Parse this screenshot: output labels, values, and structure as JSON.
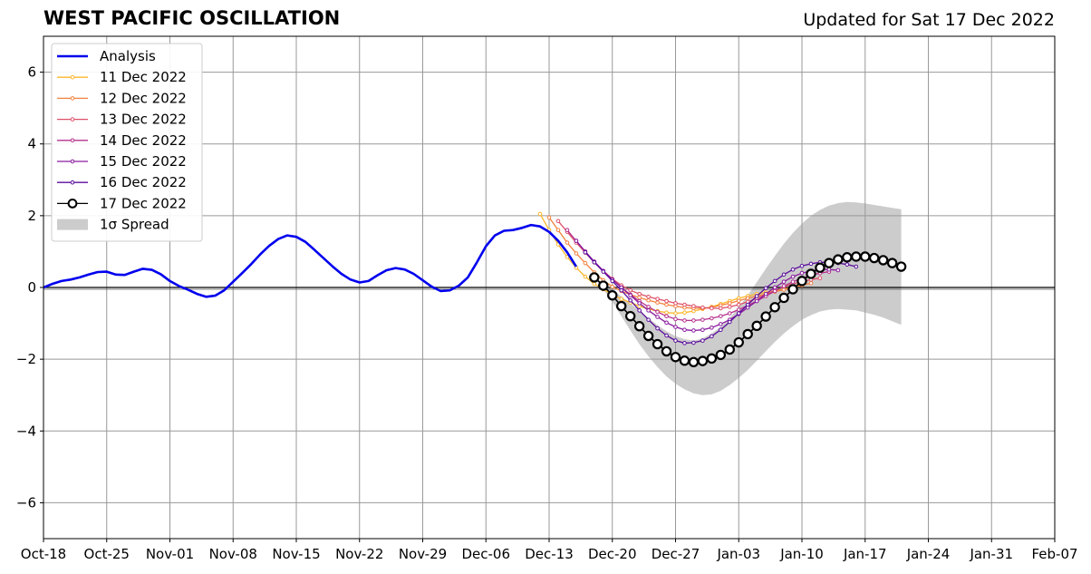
{
  "header": {
    "title": "WEST PACIFIC OSCILLATION",
    "updated": "Updated for Sat 17 Dec 2022"
  },
  "chart_data": {
    "type": "line",
    "title": "WEST PACIFIC OSCILLATION",
    "subtitle": "Updated for Sat 17 Dec 2022",
    "xlabel": "",
    "ylabel": "",
    "xlim": [
      "2022-10-18",
      "2023-02-07"
    ],
    "ylim": [
      -7,
      7
    ],
    "grid": true,
    "legend_position": "top-left",
    "x_tick_labels": [
      "Oct-18",
      "Oct-25",
      "Nov-01",
      "Nov-08",
      "Nov-15",
      "Nov-22",
      "Nov-29",
      "Dec-06",
      "Dec-13",
      "Dec-20",
      "Dec-27",
      "Jan-03",
      "Jan-10",
      "Jan-17",
      "Jan-24",
      "Jan-31",
      "Feb-07"
    ],
    "x_tick_dates": [
      "2022-10-18",
      "2022-10-25",
      "2022-11-01",
      "2022-11-08",
      "2022-11-15",
      "2022-11-22",
      "2022-11-29",
      "2022-12-06",
      "2022-12-13",
      "2022-12-20",
      "2022-12-27",
      "2023-01-03",
      "2023-01-10",
      "2023-01-17",
      "2023-01-24",
      "2023-01-31",
      "2023-02-07"
    ],
    "y_ticks": [
      6,
      4,
      2,
      0,
      -2,
      -4,
      -6
    ],
    "y_tick_labels": [
      "6",
      "4",
      "2",
      "0",
      "−2",
      "−4",
      "−6"
    ],
    "analysis": {
      "name": "Analysis",
      "color": "#0000ee",
      "x": [
        "2022-10-18",
        "2022-10-19",
        "2022-10-20",
        "2022-10-21",
        "2022-10-22",
        "2022-10-23",
        "2022-10-24",
        "2022-10-25",
        "2022-10-26",
        "2022-10-27",
        "2022-10-28",
        "2022-10-29",
        "2022-10-30",
        "2022-10-31",
        "2022-11-01",
        "2022-11-02",
        "2022-11-03",
        "2022-11-04",
        "2022-11-05",
        "2022-11-06",
        "2022-11-07",
        "2022-11-08",
        "2022-11-09",
        "2022-11-10",
        "2022-11-11",
        "2022-11-12",
        "2022-11-13",
        "2022-11-14",
        "2022-11-15",
        "2022-11-16",
        "2022-11-17",
        "2022-11-18",
        "2022-11-19",
        "2022-11-20",
        "2022-11-21",
        "2022-11-22",
        "2022-11-23",
        "2022-11-24",
        "2022-11-25",
        "2022-11-26",
        "2022-11-27",
        "2022-11-28",
        "2022-11-29",
        "2022-11-30",
        "2022-12-01",
        "2022-12-02",
        "2022-12-03",
        "2022-12-04",
        "2022-12-05",
        "2022-12-06",
        "2022-12-07",
        "2022-12-08",
        "2022-12-09",
        "2022-12-10",
        "2022-12-11",
        "2022-12-12",
        "2022-12-13",
        "2022-12-14",
        "2022-12-15",
        "2022-12-16"
      ],
      "y": [
        0.0,
        0.1,
        0.18,
        0.22,
        0.28,
        0.36,
        0.43,
        0.44,
        0.36,
        0.35,
        0.44,
        0.52,
        0.49,
        0.37,
        0.18,
        0.04,
        -0.06,
        -0.18,
        -0.26,
        -0.23,
        -0.08,
        0.16,
        0.4,
        0.65,
        0.92,
        1.16,
        1.35,
        1.45,
        1.41,
        1.27,
        1.05,
        0.82,
        0.59,
        0.38,
        0.22,
        0.14,
        0.18,
        0.34,
        0.48,
        0.54,
        0.5,
        0.38,
        0.2,
        0.02,
        -0.1,
        -0.08,
        0.05,
        0.28,
        0.7,
        1.15,
        1.45,
        1.58,
        1.6,
        1.66,
        1.74,
        1.7,
        1.55,
        1.3,
        0.98,
        0.58
      ]
    },
    "forecasts": [
      {
        "name": "11 Dec 2022",
        "color": "#fcb62a",
        "start": "2022-12-12",
        "y": [
          2.05,
          1.6,
          1.2,
          0.85,
          0.55,
          0.3,
          0.1,
          -0.05,
          -0.2,
          -0.32,
          -0.42,
          -0.52,
          -0.6,
          -0.66,
          -0.7,
          -0.72,
          -0.7,
          -0.66,
          -0.6,
          -0.54,
          -0.46,
          -0.38,
          -0.3,
          -0.24,
          -0.18,
          -0.14,
          -0.1,
          -0.05,
          0.02,
          0.1
        ]
      },
      {
        "name": "12 Dec 2022",
        "color": "#f3823d",
        "start": "2022-12-13",
        "y": [
          1.95,
          1.6,
          1.25,
          0.95,
          0.68,
          0.42,
          0.2,
          0.02,
          -0.1,
          -0.2,
          -0.28,
          -0.36,
          -0.42,
          -0.48,
          -0.52,
          -0.56,
          -0.58,
          -0.58,
          -0.55,
          -0.5,
          -0.44,
          -0.37,
          -0.3,
          -0.24,
          -0.18,
          -0.12,
          -0.06,
          0.0,
          0.06,
          0.12
        ]
      },
      {
        "name": "13 Dec 2022",
        "color": "#dd5069",
        "start": "2022-12-14",
        "y": [
          1.85,
          1.55,
          1.25,
          0.97,
          0.7,
          0.46,
          0.24,
          0.06,
          -0.08,
          -0.18,
          -0.26,
          -0.32,
          -0.38,
          -0.44,
          -0.48,
          -0.52,
          -0.56,
          -0.58,
          -0.58,
          -0.54,
          -0.48,
          -0.4,
          -0.3,
          -0.2,
          -0.08,
          0.02,
          0.1,
          0.16,
          0.22,
          0.26
        ]
      },
      {
        "name": "14 Dec 2022",
        "color": "#b5308d",
        "start": "2022-12-15",
        "y": [
          1.6,
          1.3,
          1.0,
          0.72,
          0.46,
          0.22,
          0.0,
          -0.2,
          -0.38,
          -0.54,
          -0.68,
          -0.8,
          -0.88,
          -0.92,
          -0.92,
          -0.9,
          -0.86,
          -0.8,
          -0.72,
          -0.62,
          -0.5,
          -0.38,
          -0.24,
          -0.1,
          0.04,
          0.16,
          0.26,
          0.34,
          0.4,
          0.44
        ]
      },
      {
        "name": "15 Dec 2022",
        "color": "#8a1b9e",
        "start": "2022-12-16",
        "y": [
          1.3,
          1.0,
          0.72,
          0.46,
          0.22,
          0.0,
          -0.22,
          -0.44,
          -0.64,
          -0.82,
          -0.98,
          -1.1,
          -1.18,
          -1.2,
          -1.18,
          -1.12,
          -1.02,
          -0.9,
          -0.74,
          -0.56,
          -0.38,
          -0.18,
          0.0,
          0.16,
          0.3,
          0.4,
          0.46,
          0.5,
          0.5,
          0.48
        ]
      },
      {
        "name": "16 Dec 2022",
        "color": "#5a0d9c",
        "start": "2022-12-17",
        "y": [
          0.98,
          0.7,
          0.44,
          0.18,
          -0.08,
          -0.36,
          -0.64,
          -0.9,
          -1.14,
          -1.34,
          -1.48,
          -1.55,
          -1.54,
          -1.48,
          -1.36,
          -1.18,
          -0.96,
          -0.72,
          -0.48,
          -0.24,
          -0.02,
          0.18,
          0.36,
          0.5,
          0.6,
          0.66,
          0.7,
          0.7,
          0.68,
          0.64,
          0.58
        ]
      },
      {
        "name": "17 Dec 2022",
        "color": "#000000",
        "start": "2022-12-18",
        "y": [
          0.28,
          0.05,
          -0.22,
          -0.52,
          -0.8,
          -1.08,
          -1.35,
          -1.58,
          -1.78,
          -1.94,
          -2.04,
          -2.08,
          -2.05,
          -1.98,
          -1.88,
          -1.73,
          -1.53,
          -1.3,
          -1.07,
          -0.81,
          -0.55,
          -0.29,
          -0.05,
          0.18,
          0.38,
          0.55,
          0.68,
          0.78,
          0.84,
          0.86,
          0.86,
          0.82,
          0.76,
          0.68,
          0.58
        ]
      }
    ],
    "spread": {
      "name": "1σ Spread",
      "color": "#cccccc",
      "start": "2022-12-18",
      "upper": [
        0.28,
        0.12,
        -0.06,
        -0.25,
        -0.45,
        -0.65,
        -0.85,
        -1.05,
        -1.22,
        -1.36,
        -1.44,
        -1.48,
        -1.42,
        -1.28,
        -1.1,
        -0.85,
        -0.55,
        -0.22,
        0.15,
        0.52,
        0.88,
        1.22,
        1.52,
        1.78,
        2.0,
        2.16,
        2.28,
        2.35,
        2.38,
        2.37,
        2.34,
        2.3,
        2.26,
        2.22,
        2.18
      ],
      "lower": [
        0.28,
        -0.05,
        -0.4,
        -0.8,
        -1.2,
        -1.58,
        -1.92,
        -2.22,
        -2.48,
        -2.68,
        -2.84,
        -2.95,
        -3.0,
        -2.98,
        -2.88,
        -2.72,
        -2.52,
        -2.3,
        -2.04,
        -1.78,
        -1.52,
        -1.28,
        -1.08,
        -0.9,
        -0.77,
        -0.67,
        -0.62,
        -0.6,
        -0.62,
        -0.64,
        -0.7,
        -0.76,
        -0.84,
        -0.94,
        -1.04
      ]
    },
    "legend": [
      "Analysis",
      "11 Dec 2022",
      "12 Dec 2022",
      "13 Dec 2022",
      "14 Dec 2022",
      "15 Dec 2022",
      "16 Dec 2022",
      "17 Dec 2022",
      "1σ Spread"
    ]
  }
}
